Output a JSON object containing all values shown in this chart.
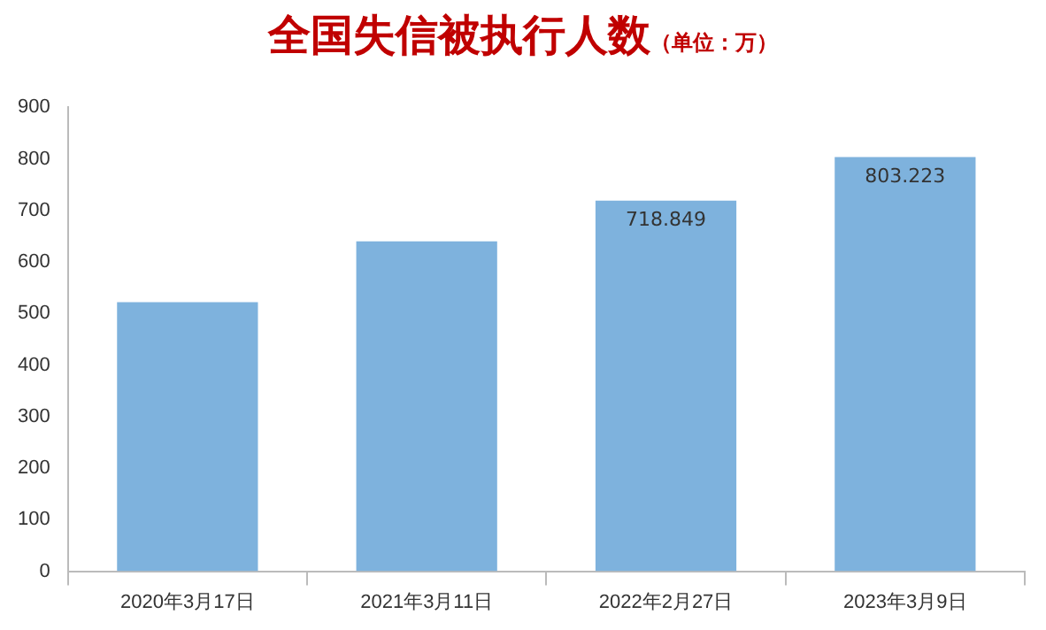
{
  "chart_data": {
    "type": "bar",
    "title": "全国失信被执行人数",
    "subtitle": "（单位：万）",
    "categories": [
      "2020年3月17日",
      "2021年3月11日",
      "2022年2月27日",
      "2023年3月9日"
    ],
    "values": [
      522,
      640,
      718.849,
      803.223
    ],
    "value_labels": [
      null,
      null,
      "718.849",
      "803.223"
    ],
    "color": "#7eb2dd",
    "ylim": [
      0,
      900
    ],
    "yticks": [
      0,
      100,
      200,
      300,
      400,
      500,
      600,
      700,
      800,
      900
    ],
    "grid": false,
    "legend": false
  }
}
